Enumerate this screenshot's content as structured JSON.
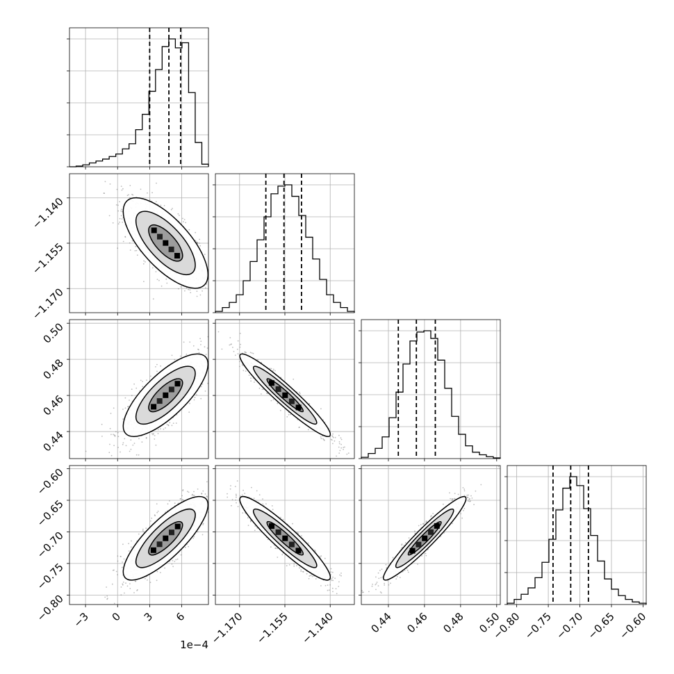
{
  "chart_data": {
    "type": "corner",
    "parameters": [
      {
        "range": [
          -4.5,
          8.5
        ],
        "ticks": [
          -3,
          0,
          3,
          6
        ],
        "tick_labels": [
          "−3",
          "0",
          "3",
          "6"
        ],
        "offset_label": "1e−4",
        "quantiles": [
          3.0,
          4.8,
          5.9
        ],
        "hist": [
          0,
          0.005,
          0.015,
          0.03,
          0.045,
          0.06,
          0.08,
          0.1,
          0.14,
          0.18,
          0.29,
          0.41,
          0.59,
          0.76,
          0.94,
          1.0,
          0.93,
          0.97,
          0.58,
          0.19,
          0.02
        ]
      },
      {
        "range": [
          -1.178,
          -1.132
        ],
        "ticks": [
          -1.17,
          -1.155,
          -1.14
        ],
        "tick_labels": [
          "−1.170",
          "−1.155",
          "−1.140"
        ],
        "quantiles": [
          -1.1613,
          -1.1553,
          -1.1495
        ],
        "hist": [
          0.01,
          0.04,
          0.08,
          0.14,
          0.25,
          0.4,
          0.57,
          0.75,
          0.93,
          0.99,
          1.0,
          0.91,
          0.76,
          0.59,
          0.42,
          0.26,
          0.14,
          0.08,
          0.04,
          0.01
        ]
      },
      {
        "range": [
          0.425,
          0.502
        ],
        "ticks": [
          0.44,
          0.46,
          0.48,
          0.5
        ],
        "tick_labels": [
          "0.44",
          "0.46",
          "0.48",
          "0.50"
        ],
        "quantiles": [
          0.4455,
          0.4555,
          0.466
        ],
        "hist": [
          0.01,
          0.04,
          0.08,
          0.17,
          0.32,
          0.52,
          0.74,
          0.92,
          0.99,
          1.0,
          0.94,
          0.77,
          0.55,
          0.33,
          0.19,
          0.1,
          0.05,
          0.03,
          0.015,
          0.005
        ]
      },
      {
        "range": [
          -0.815,
          -0.595
        ],
        "ticks": [
          -0.8,
          -0.75,
          -0.7,
          -0.65,
          -0.6
        ],
        "tick_labels": [
          "−0.80",
          "−0.75",
          "−0.70",
          "−0.65",
          "−0.60"
        ],
        "quantiles": [
          -0.7425,
          -0.7145,
          -0.6865
        ],
        "hist": [
          0.01,
          0.04,
          0.08,
          0.13,
          0.21,
          0.33,
          0.51,
          0.74,
          0.91,
          1.0,
          0.93,
          0.75,
          0.54,
          0.34,
          0.2,
          0.12,
          0.07,
          0.04,
          0.02,
          0.01
        ]
      }
    ],
    "correlations": {
      "r10": -0.7,
      "r20": 0.75,
      "r30": 0.8,
      "r21": -0.95,
      "r31": -0.93,
      "r32": 0.95
    },
    "grid": true,
    "contours": true
  }
}
